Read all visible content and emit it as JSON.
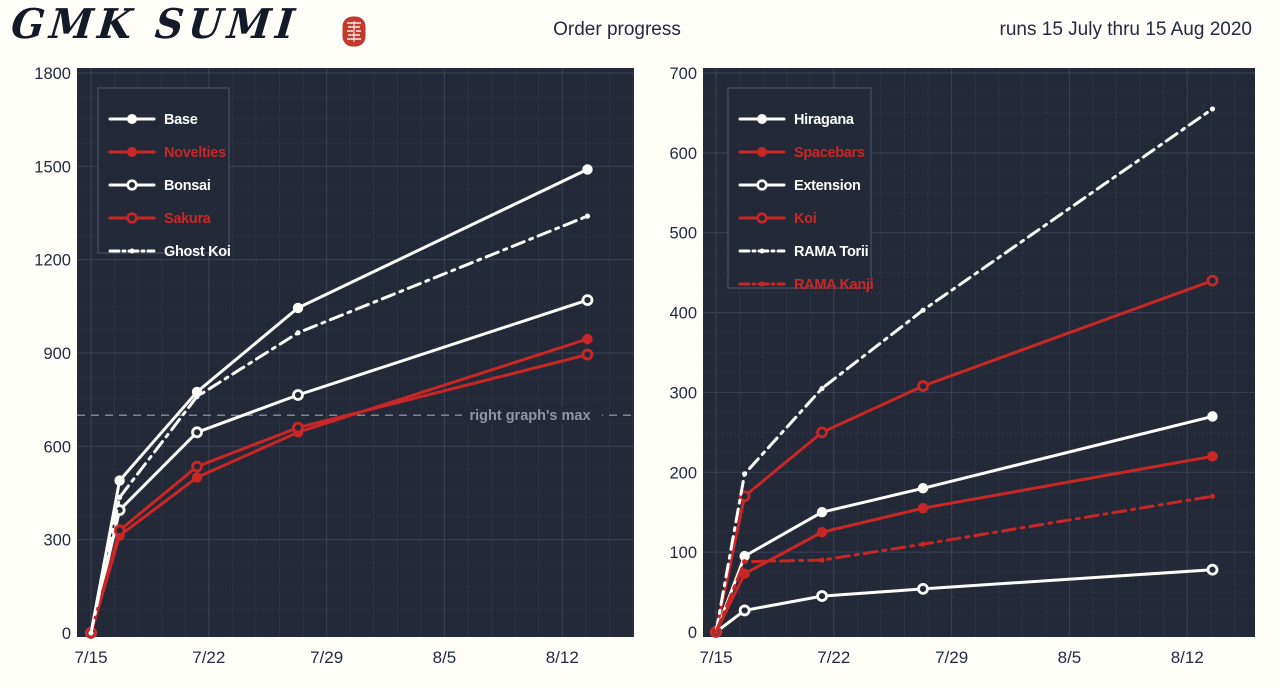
{
  "header": {
    "logo_text": "GMK SUMI",
    "seal_icon": "red-seal-stamp",
    "title": "Order progress",
    "subtitle": "runs 15 July thru 15 Aug 2020"
  },
  "colors": {
    "background": "#fffef8",
    "plot_bg": "#242937",
    "series_white": "#fcfcf9",
    "series_red": "#c92727",
    "grid_major": "#3b4154",
    "grid_minor": "#2c3243",
    "grid_minor_h": "#3a4052",
    "axis_text": "#242b41",
    "annotation_gray": "#9095a1",
    "legend_border": "#4a5064",
    "seal_red": "#c23a2e"
  },
  "chart_data": [
    {
      "id": "left-orders-chart",
      "type": "line",
      "title": "",
      "xlabel": "",
      "ylabel": "",
      "grid": true,
      "legend_position": "upper left",
      "x_point_dates": [
        "7/15",
        "7/17",
        "7/21",
        "7/27",
        "8/14"
      ],
      "x_days": [
        0,
        1.7,
        6.3,
        12.3,
        29.5
      ],
      "x_tick_interval_days": 7,
      "x_ticks": [
        {
          "day": 0,
          "label": "7/15"
        },
        {
          "day": 7,
          "label": "7/22"
        },
        {
          "day": 14,
          "label": "7/29"
        },
        {
          "day": 21,
          "label": "8/5"
        },
        {
          "day": 28,
          "label": "8/12"
        }
      ],
      "ylim": [
        0,
        1800
      ],
      "y_ticks": [
        0,
        300,
        600,
        900,
        1200,
        1500,
        1800
      ],
      "annotation": {
        "text": "right graph's max",
        "y": 700,
        "style": "dashed-gray"
      },
      "series": [
        {
          "name": "Base",
          "color_key": "white",
          "marker": "filled",
          "line_style": "solid",
          "values": [
            0,
            490,
            775,
            1045,
            1490
          ]
        },
        {
          "name": "Novelties",
          "color_key": "red",
          "marker": "filled",
          "line_style": "solid",
          "values": [
            0,
            313,
            500,
            645,
            945
          ]
        },
        {
          "name": "Bonsai",
          "color_key": "white",
          "marker": "open",
          "line_style": "solid",
          "values": [
            0,
            395,
            645,
            765,
            1070
          ]
        },
        {
          "name": "Sakura",
          "color_key": "red",
          "marker": "open",
          "line_style": "solid",
          "values": [
            0,
            330,
            535,
            660,
            895
          ]
        },
        {
          "name": "Ghost Koi",
          "color_key": "white",
          "marker": "dot",
          "line_style": "dashdot",
          "values": [
            0,
            436,
            760,
            965,
            1340
          ]
        }
      ]
    },
    {
      "id": "right-orders-chart",
      "type": "line",
      "title": "",
      "xlabel": "",
      "ylabel": "",
      "grid": true,
      "legend_position": "upper left",
      "x_point_dates": [
        "7/15",
        "7/17",
        "7/21",
        "7/27",
        "8/14"
      ],
      "x_days": [
        0,
        1.7,
        6.3,
        12.3,
        29.5
      ],
      "x_tick_interval_days": 7,
      "x_ticks": [
        {
          "day": 0,
          "label": "7/15"
        },
        {
          "day": 7,
          "label": "7/22"
        },
        {
          "day": 14,
          "label": "7/29"
        },
        {
          "day": 21,
          "label": "8/5"
        },
        {
          "day": 28,
          "label": "8/12"
        }
      ],
      "ylim": [
        0,
        700
      ],
      "y_ticks": [
        0,
        100,
        200,
        300,
        400,
        500,
        600,
        700
      ],
      "series": [
        {
          "name": "Hiragana",
          "color_key": "white",
          "marker": "filled",
          "line_style": "solid",
          "values": [
            0,
            95,
            150,
            180,
            270
          ]
        },
        {
          "name": "Spacebars",
          "color_key": "red",
          "marker": "filled",
          "line_style": "solid",
          "values": [
            0,
            73,
            125,
            155,
            220
          ]
        },
        {
          "name": "Extension",
          "color_key": "white",
          "marker": "open",
          "line_style": "solid",
          "values": [
            0,
            27,
            45,
            54,
            78
          ]
        },
        {
          "name": "Koi",
          "color_key": "red",
          "marker": "open",
          "line_style": "solid",
          "values": [
            0,
            170,
            250,
            308,
            440
          ]
        },
        {
          "name": "RAMA Torii",
          "color_key": "white",
          "marker": "dot",
          "line_style": "dashdot",
          "values": [
            0,
            198,
            305,
            403,
            655
          ]
        },
        {
          "name": "RAMA Kanji",
          "color_key": "red",
          "marker": "dot",
          "line_style": "dashdot",
          "values": [
            0,
            88,
            90,
            110,
            170
          ]
        }
      ]
    }
  ]
}
